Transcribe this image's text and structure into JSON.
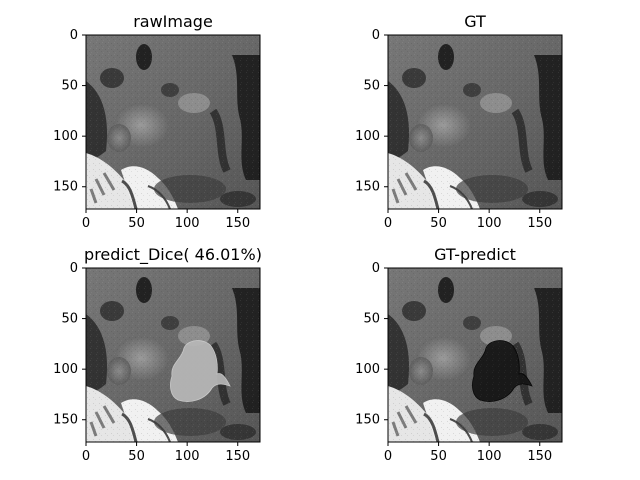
{
  "chart_data": [
    {
      "type": "heatmap",
      "title": "rawImage",
      "xlim": [
        0,
        172
      ],
      "ylim": [
        172,
        0
      ],
      "xticks": [
        0,
        50,
        100,
        150
      ],
      "yticks": [
        0,
        50,
        100,
        150
      ],
      "cmap": "gray",
      "overlay": "none"
    },
    {
      "type": "heatmap",
      "title": "GT",
      "xlim": [
        0,
        172
      ],
      "ylim": [
        172,
        0
      ],
      "xticks": [
        0,
        50,
        100,
        150
      ],
      "yticks": [
        0,
        50,
        100,
        150
      ],
      "cmap": "gray",
      "overlay": "none"
    },
    {
      "type": "heatmap",
      "title": "predict_Dice( 46.01%)",
      "xlim": [
        0,
        172
      ],
      "ylim": [
        172,
        0
      ],
      "xticks": [
        0,
        50,
        100,
        150
      ],
      "yticks": [
        0,
        50,
        100,
        150
      ],
      "cmap": "gray",
      "overlay": "light"
    },
    {
      "type": "heatmap",
      "title": "GT-predict",
      "xlim": [
        0,
        172
      ],
      "ylim": [
        172,
        0
      ],
      "xticks": [
        0,
        50,
        100,
        150
      ],
      "yticks": [
        0,
        50,
        100,
        150
      ],
      "cmap": "gray",
      "overlay": "dark"
    }
  ],
  "colors": {
    "light_region": "#b8b8b8",
    "dark_region": "#161616",
    "axis": "#000000",
    "background": "#ffffff"
  }
}
